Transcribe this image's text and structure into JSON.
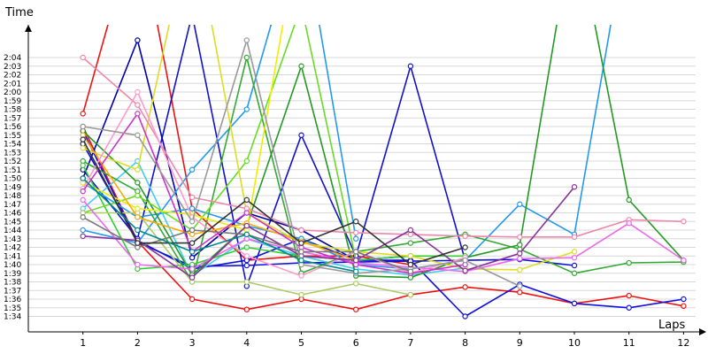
{
  "chart_data": {
    "type": "line",
    "ylabel": "Time",
    "xlabel": "Laps",
    "x": [
      1,
      2,
      3,
      4,
      5,
      6,
      7,
      8,
      9,
      10,
      11,
      12
    ],
    "ylim_seconds": [
      92,
      126
    ],
    "y_tick_values_seconds": [
      94,
      95,
      96,
      97,
      98,
      99,
      100,
      101,
      102,
      103,
      104,
      105,
      106,
      107,
      108,
      109,
      110,
      111,
      112,
      113,
      114,
      115,
      116,
      117,
      118,
      119,
      120,
      121,
      122,
      123,
      124
    ],
    "y_tick_labels": [
      "1:34",
      "1:35",
      "1:36",
      "1:37",
      "1:38",
      "1:39",
      "1:40",
      "1:41",
      "1:42",
      "1:43",
      "1:44",
      "1:45",
      "1:46",
      "1:47",
      "1:48",
      "1:49",
      "1:50",
      "1:51",
      "1:52",
      "1:53",
      "1:54",
      "1:55",
      "1:56",
      "1:57",
      "1:58",
      "1:59",
      "2:00",
      "2:01",
      "2:02",
      "2:03",
      "2:04"
    ],
    "x_tick_labels": [
      "1",
      "2",
      "3",
      "4",
      "5",
      "6",
      "7",
      "8",
      "9",
      "10",
      "11",
      "12"
    ],
    "grid": true,
    "legend": "none",
    "series": [
      {
        "color": "#ee1111",
        "values": [
          117.5,
          140,
          106.5,
          100.5,
          101,
          101,
          100,
          null,
          null,
          null,
          null,
          null
        ]
      },
      {
        "color": "#ee1111",
        "values": [
          116,
          102.7,
          96,
          94.8,
          96,
          94.8,
          96.5,
          97.4,
          96.8,
          95.5,
          96.4,
          95.2
        ]
      },
      {
        "color": "#1111dd",
        "values": [
          114,
          102.8,
          99.5,
          100.5,
          103,
          100.5,
          100.5,
          94,
          97.7,
          95.5,
          95,
          96
        ]
      },
      {
        "color": "#1111dd",
        "values": [
          115.5,
          102.6,
          99.8,
          99.9,
          100.2,
          100.3,
          100.4,
          100.5,
          100.6,
          99.9,
          null,
          null
        ]
      },
      {
        "color": "#1111cc",
        "values": [
          111,
          103,
          129,
          97.5,
          115,
          101,
          123,
          100.5,
          null,
          null,
          null,
          null
        ]
      },
      {
        "color": "#0000aa",
        "values": [
          110,
          126,
          100.8,
          106,
          104,
          100.5,
          101,
          null,
          null,
          null,
          null,
          null
        ]
      },
      {
        "color": "#2299ee",
        "values": [
          104,
          102.5,
          111,
          118,
          140,
          103,
          null,
          null,
          null,
          null,
          null,
          null
        ]
      },
      {
        "color": "#2299ee",
        "values": [
          109.5,
          105.5,
          106.5,
          104.5,
          103,
          100,
          99.5,
          100.5,
          107,
          103.5,
          140,
          null
        ]
      },
      {
        "color": "#44ccee",
        "values": [
          106.5,
          112,
          98.7,
          103,
          101,
          99.5,
          98.8,
          99.6,
          null,
          null,
          null,
          null
        ]
      },
      {
        "color": "#33aa33",
        "values": [
          112,
          108.5,
          98,
          124,
          99,
          101.5,
          102.5,
          103.5,
          101.8,
          99,
          100.2,
          100.3
        ]
      },
      {
        "color": "#229922",
        "values": [
          115.5,
          109.5,
          98.8,
          104.5,
          123,
          98.7,
          98.5,
          100.8,
          102.3,
          140,
          107.5,
          100.5
        ]
      },
      {
        "color": "#33cc33",
        "values": [
          111.5,
          99.5,
          100,
          102,
          101,
          100.5,
          101,
          101,
          null,
          null,
          null,
          null
        ]
      },
      {
        "color": "#66dd22",
        "values": [
          106,
          108,
          104,
          112,
          130,
          100.5,
          null,
          null,
          null,
          null,
          null,
          null
        ]
      },
      {
        "color": "#aacc66",
        "values": [
          106,
          106,
          98,
          98,
          96.5,
          97.8,
          96.5,
          null,
          null,
          null,
          null,
          null
        ]
      },
      {
        "color": "#dddd22",
        "values": [
          113.5,
          111,
          140,
          106,
          102.5,
          101.5,
          101,
          99.5,
          99.4,
          101.5,
          null,
          null
        ]
      },
      {
        "color": "#eeee00",
        "values": [
          109.5,
          106.5,
          105.8,
          104,
          140,
          null,
          null,
          null,
          null,
          null,
          null,
          null
        ]
      },
      {
        "color": "#ffaa00",
        "values": [
          115,
          105.5,
          103.5,
          104.8,
          102.7,
          100.5,
          null,
          null,
          null,
          null,
          null,
          null
        ]
      },
      {
        "color": "#ee88aa",
        "values": [
          124,
          118.5,
          107.8,
          106.5,
          104,
          103.7,
          103.5,
          103.3,
          103.2,
          103.2,
          105.2,
          105
        ]
      },
      {
        "color": "#ff99cc",
        "values": [
          108.8,
          120,
          105.5,
          101,
          98.7,
          101.5,
          99,
          100.8,
          null,
          null,
          null,
          null
        ]
      },
      {
        "color": "#ee66ee",
        "values": [
          107.5,
          100,
          99.5,
          103,
          101.5,
          100.2,
          99.7,
          99.2,
          100.7,
          100.8,
          104.8,
          100.5
        ]
      },
      {
        "color": "#cc33cc",
        "values": [
          108.5,
          117.5,
          101.5,
          106,
          102,
          100,
          99,
          100,
          null,
          null,
          null,
          null
        ]
      },
      {
        "color": "#883399",
        "values": [
          103.3,
          102.8,
          98.5,
          104.5,
          101,
          100.5,
          104,
          99.3,
          101.3,
          109,
          null,
          null
        ]
      },
      {
        "color": "#999999",
        "values": [
          116,
          115,
          105,
          126,
          100,
          99,
          99.5,
          100.5,
          97.5,
          null,
          null,
          null
        ]
      },
      {
        "color": "#777777",
        "values": [
          105.5,
          102,
          104,
          103.5,
          101.5,
          101.5,
          99.2,
          null,
          null,
          null,
          null,
          null
        ]
      },
      {
        "color": "#333333",
        "values": [
          114.5,
          102.5,
          102.5,
          107.5,
          102.5,
          105,
          100,
          102,
          null,
          null,
          null,
          null
        ]
      },
      {
        "color": "#008888",
        "values": [
          110,
          104,
          101.5,
          103.5,
          100.5,
          99.2,
          null,
          null,
          null,
          null,
          null,
          null
        ]
      }
    ]
  }
}
